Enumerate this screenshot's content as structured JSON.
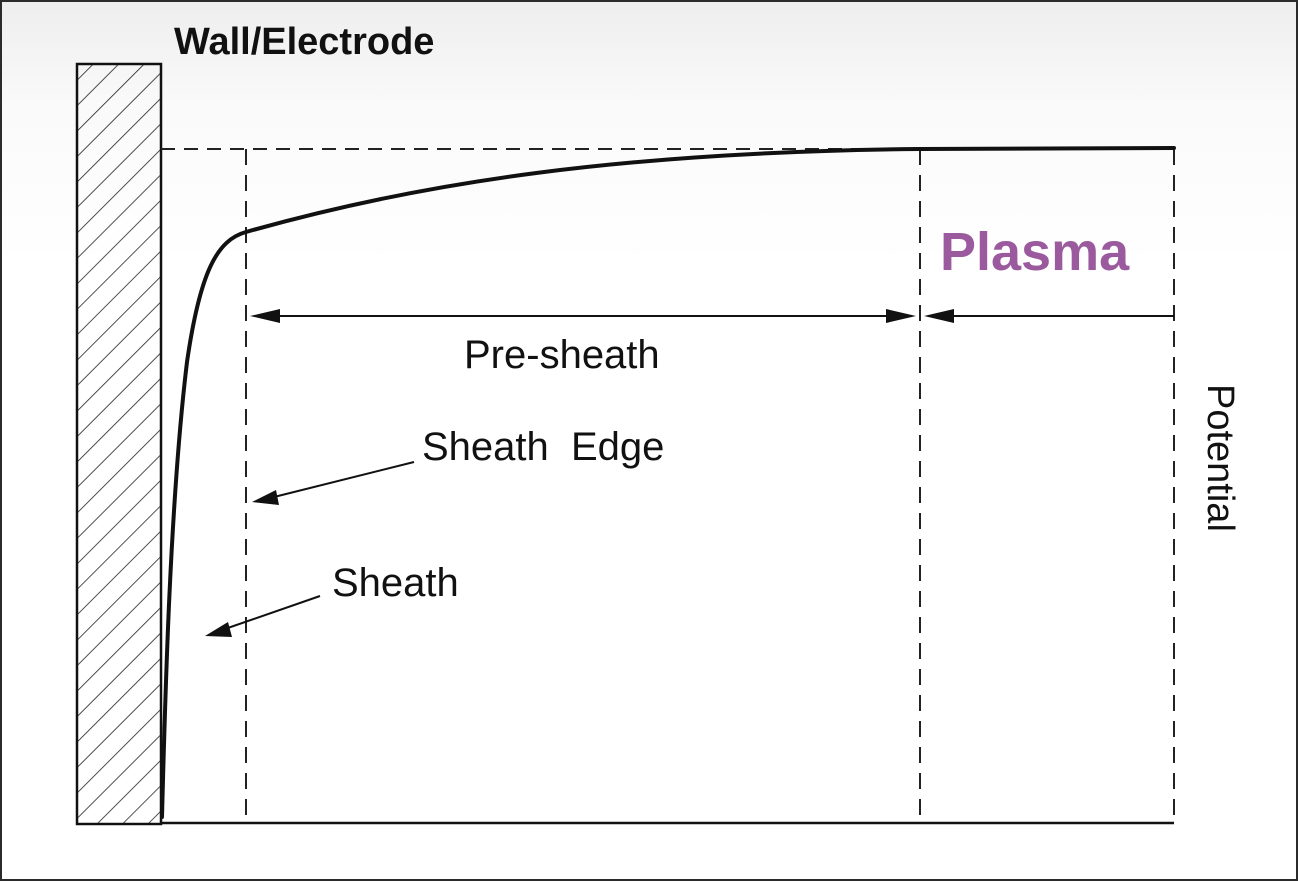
{
  "labels": {
    "wall": "Wall/Electrode",
    "plasma": "Plasma",
    "presheath": "Pre-sheath",
    "sheath_edge": "Sheath  Edge",
    "sheath": "Sheath",
    "potential": "Potential"
  },
  "colors": {
    "plasma_label": "#9b5a9e",
    "line": "#111111"
  }
}
